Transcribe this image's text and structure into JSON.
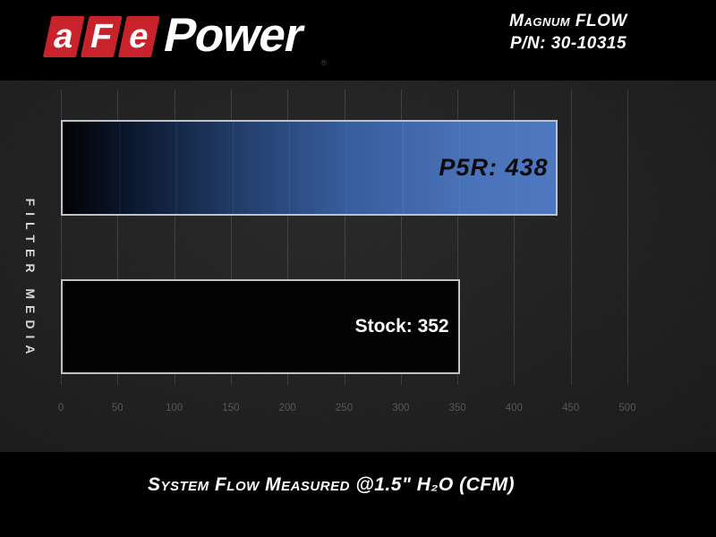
{
  "header": {
    "logo": {
      "red_letters": [
        "a",
        "F",
        "e"
      ],
      "wordmark": "Power",
      "registered_mark": "®"
    },
    "product_line": "Magnum FLOW",
    "part_number": "P/N: 30-10315"
  },
  "chart": {
    "y_axis_label": "FILTER MEDIA",
    "x_ticks": [
      "0",
      "50",
      "100",
      "150",
      "200",
      "250",
      "300",
      "350",
      "400",
      "450",
      "500"
    ],
    "bars": [
      {
        "name": "P5R",
        "label": "P5R: 438"
      },
      {
        "name": "Stock",
        "label": "Stock: 352"
      }
    ],
    "caption": "System Flow Measured @1.5\" H₂O (CFM)"
  },
  "chart_data": {
    "type": "bar",
    "orientation": "horizontal",
    "categories": [
      "P5R",
      "Stock"
    ],
    "values": [
      438,
      352
    ],
    "title": "Magnum FLOW P/N: 30-10315",
    "xlabel": "System Flow Measured @1.5\" H₂O (CFM)",
    "ylabel": "FILTER MEDIA",
    "xlim": [
      0,
      500
    ],
    "x_tick_interval": 50,
    "grid": "vertical",
    "legend": "none",
    "bar_colors": [
      "black-to-blue gradient #000000→#4a72b8",
      "#000000"
    ]
  },
  "colors": {
    "page_background": "#000000",
    "plot_background": "#1b1b1b",
    "bar_blue": "#4a72b8",
    "bar_black": "#030303",
    "bar_border": "#bfc3c9",
    "logo_red": "#c8222b",
    "gridline": "#3f3f3f",
    "tick_text": "#575757",
    "text_white": "#ffffff"
  }
}
